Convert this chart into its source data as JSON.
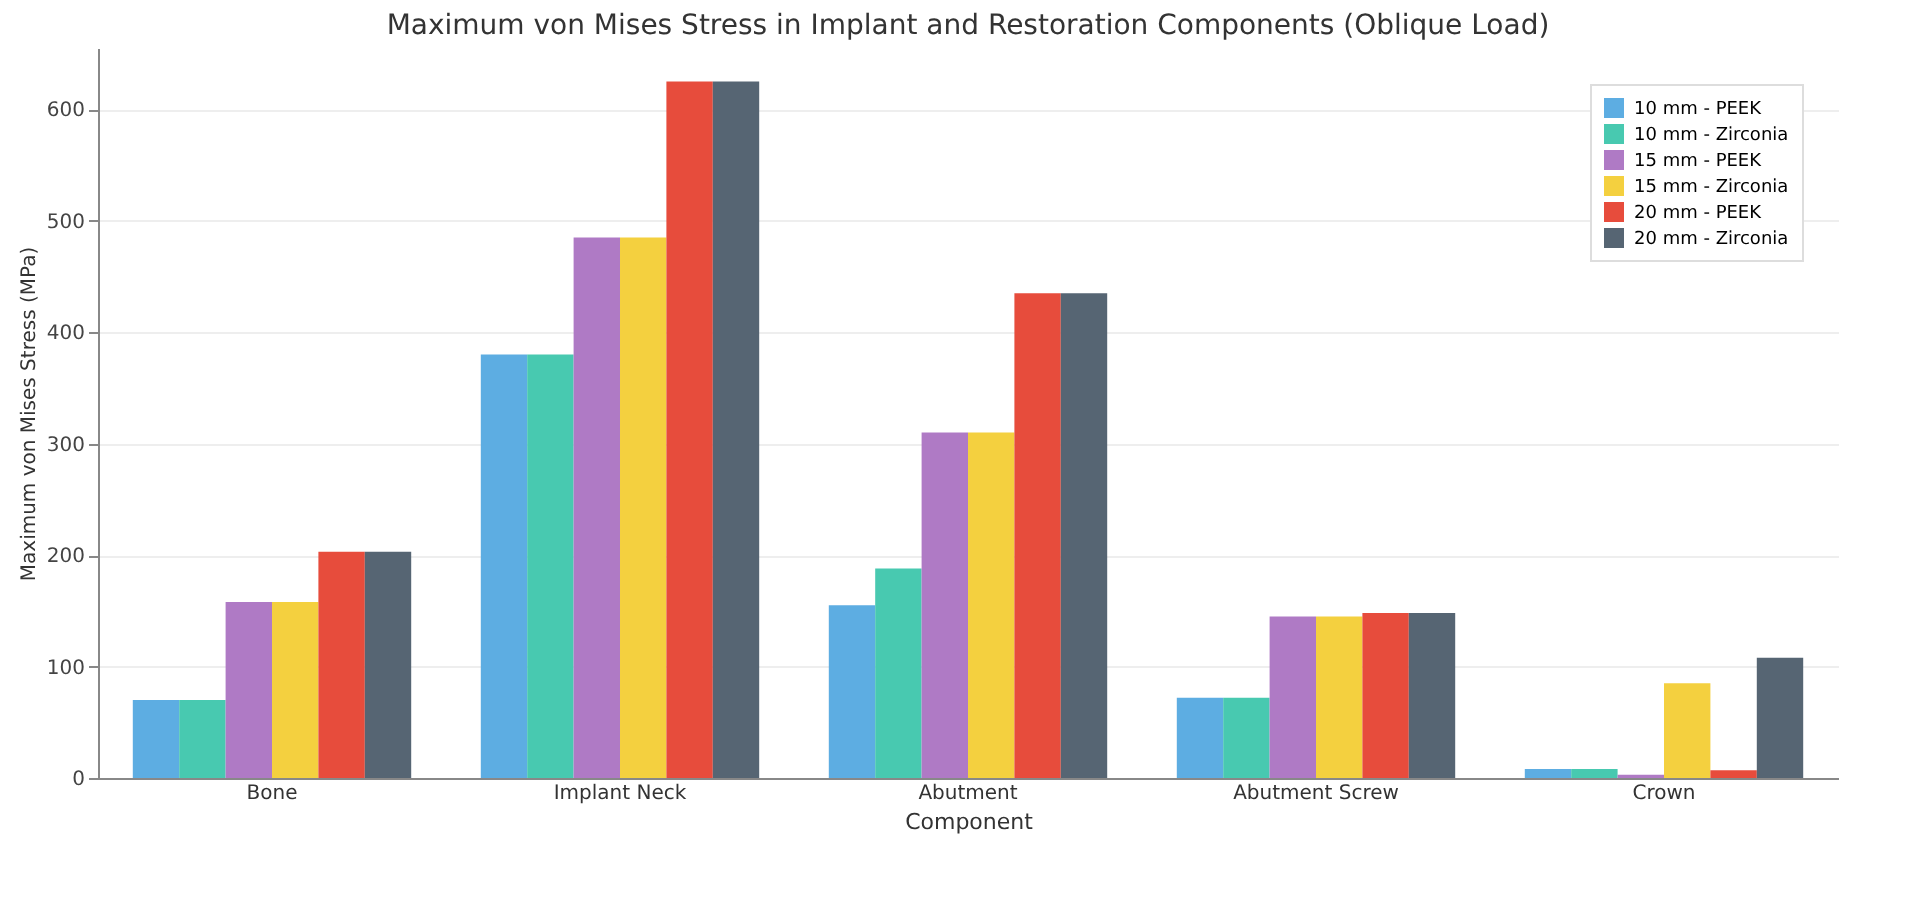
{
  "chart_data": {
    "type": "bar",
    "title": "Maximum von Mises Stress in Implant and Restoration Components (Oblique Load)",
    "xlabel": "Component",
    "ylabel": "Maximum von Mises Stress (MPa)",
    "categories": [
      "Bone",
      "Implant Neck",
      "Abutment",
      "Abutment Screw",
      "Crown"
    ],
    "series": [
      {
        "name": "10 mm - PEEK",
        "color": "#5dade2",
        "values": [
          70,
          380,
          155,
          72,
          8
        ]
      },
      {
        "name": "10 mm - Zirconia",
        "color": "#48c9b0",
        "values": [
          70,
          380,
          188,
          72,
          8
        ]
      },
      {
        "name": "15 mm - PEEK",
        "color": "#af7ac5",
        "values": [
          158,
          485,
          310,
          145,
          3
        ]
      },
      {
        "name": "15 mm - Zirconia",
        "color": "#f4d03f",
        "values": [
          158,
          485,
          310,
          145,
          85
        ]
      },
      {
        "name": "20 mm - PEEK",
        "color": "#e74c3c",
        "values": [
          203,
          625,
          435,
          148,
          7
        ]
      },
      {
        "name": "20 mm - Zirconia",
        "color": "#566573",
        "values": [
          203,
          625,
          435,
          148,
          108
        ]
      }
    ],
    "ylim": [
      0,
      655
    ],
    "yticks": [
      0,
      100,
      200,
      300,
      400,
      500,
      600
    ],
    "grid": "y",
    "legend": "top right"
  }
}
